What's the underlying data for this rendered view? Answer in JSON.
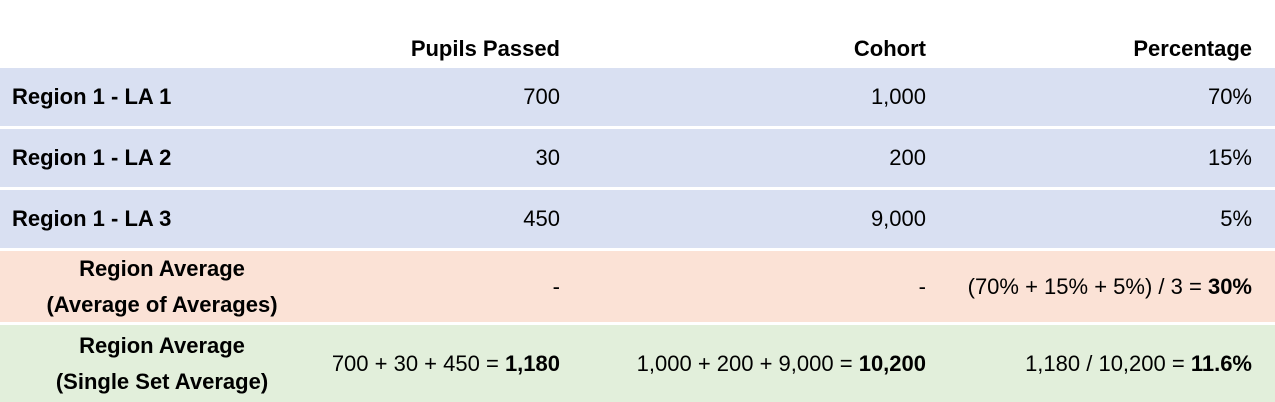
{
  "colors": {
    "blue_row": "#d9e0f2",
    "orange_row": "#fbe2d6",
    "green_row": "#e2efdb",
    "header_bg": "#ffffff"
  },
  "header": {
    "col0": "",
    "col1": "Pupils Passed",
    "col2": "Cohort",
    "col3": "Percentage"
  },
  "rows": [
    {
      "name": "Region 1 - LA 1",
      "passed": "700",
      "cohort": "1,000",
      "percentage": "70%"
    },
    {
      "name": "Region 1 - LA 2",
      "passed": "30",
      "cohort": "200",
      "percentage": "15%"
    },
    {
      "name": "Region 1 - LA 3",
      "passed": "450",
      "cohort": "9,000",
      "percentage": "5%"
    }
  ],
  "avg_of_averages": {
    "label_line1": "Region Average",
    "label_line2": "(Average of Averages)",
    "passed": "-",
    "cohort": "-",
    "percentage_formula": "(70% + 15% + 5%) / 3 = ",
    "percentage_result": "30%"
  },
  "single_set_average": {
    "label_line1": "Region Average",
    "label_line2": "(Single Set Average)",
    "passed_formula": "700 + 30 + 450 = ",
    "passed_result": "1,180",
    "cohort_formula": "1,000 + 200 + 9,000 = ",
    "cohort_result": "10,200",
    "percentage_formula": "1,180 / 10,200 = ",
    "percentage_result": "11.6%"
  }
}
